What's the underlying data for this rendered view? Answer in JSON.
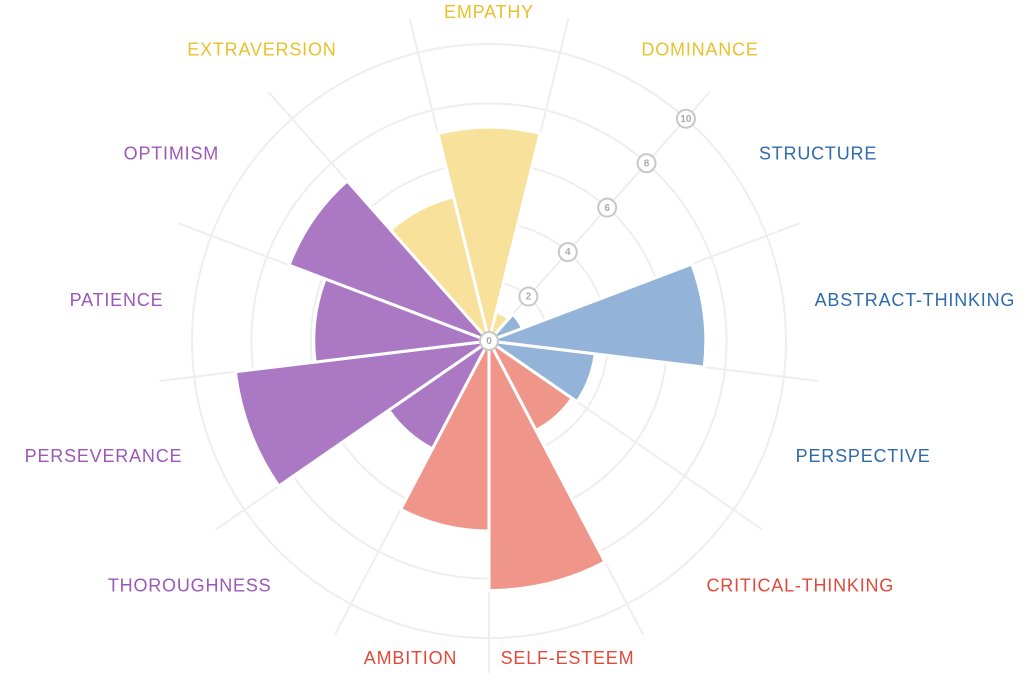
{
  "chart_data": {
    "type": "polar-area",
    "categories": [
      "EMPATHY",
      "DOMINANCE",
      "STRUCTURE",
      "ABSTRACT-THINKING",
      "PERSPECTIVE",
      "CRITICAL-THINKING",
      "SELF-ESTEEM",
      "AMBITION",
      "THOROUGHNESS",
      "PERSEVERANCE",
      "PATIENCE",
      "OPTIMISM",
      "EXTRAVERSION"
    ],
    "values": [
      7.2,
      1,
      1.2,
      7.3,
      3.6,
      3.4,
      8.4,
      6.4,
      4.1,
      8.6,
      5.9,
      7.2,
      5
    ],
    "colors": [
      "#f7e19b",
      "#f7e19b",
      "#93b3d9",
      "#93b3d9",
      "#93b3d9",
      "#f0958a",
      "#f0958a",
      "#f0958a",
      "#ab79c4",
      "#ab79c4",
      "#ab79c4",
      "#ab79c4",
      "#f7e19b"
    ],
    "label_colors": [
      "#e8c12d",
      "#e8c12d",
      "#2f6aad",
      "#2f6aad",
      "#2f6aad",
      "#e04a3b",
      "#e04a3b",
      "#e04a3b",
      "#9b58b7",
      "#9b58b7",
      "#9b58b7",
      "#9b58b7",
      "#e8c12d"
    ],
    "rlim": [
      0,
      10
    ],
    "rticks": [
      0,
      2,
      4,
      6,
      8,
      10
    ],
    "grid": true
  }
}
